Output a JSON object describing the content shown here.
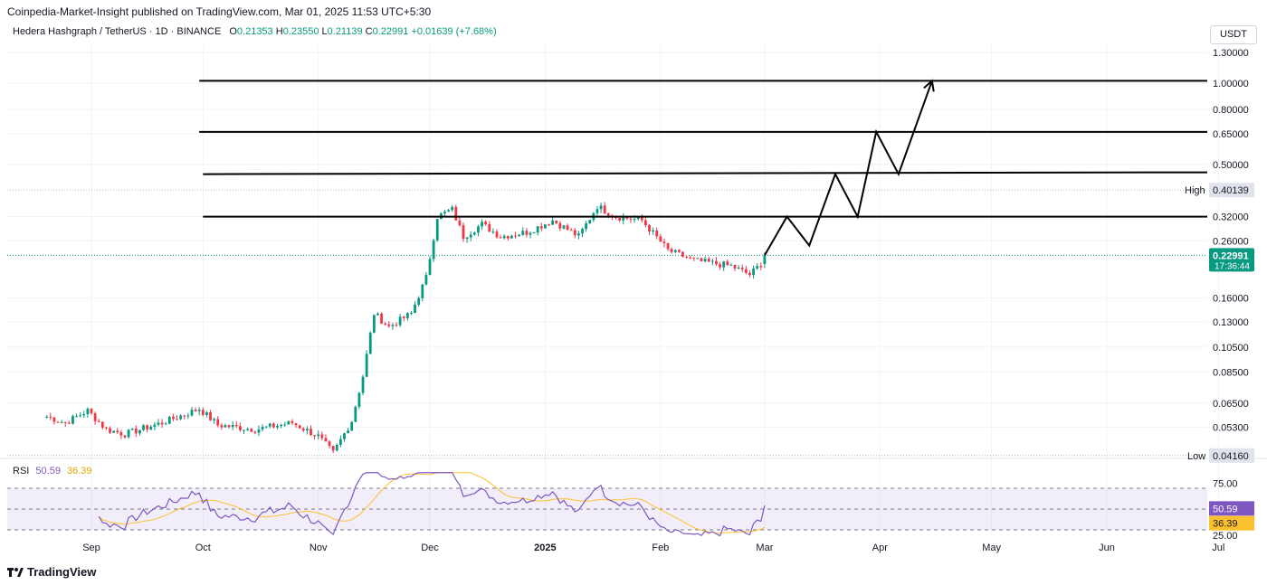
{
  "header": {
    "publisher": "Coinpedia-Market-Insight published on TradingView.com, Mar 01, 2025 11:53 UTC+5:30"
  },
  "legend": {
    "symbol": "Hedera Hashgraph / TetherUS · 1D · BINANCE",
    "open_label": "O",
    "open": "0.21353",
    "high_label": "H",
    "high": "0.23550",
    "low_label": "L",
    "low": "0.21139",
    "close_label": "C",
    "close": "0.22991",
    "change": "+0.01639 (+7.68%)"
  },
  "currency_button": "USDT",
  "rsi": {
    "label": "RSI",
    "value": "50.59",
    "ma_value": "36.39"
  },
  "footer": {
    "brand": "TradingView"
  },
  "colors": {
    "up": "#089981",
    "down": "#f23645",
    "rsi": "#7e57c2",
    "rsi_ma": "#fbc02d",
    "last_price_bg": "#089981"
  },
  "chart_data": {
    "type": "candlestick",
    "symbol": "HBAR/USDT",
    "scale": "log",
    "price_axis_ticks": [
      "1.30000",
      "1.00000",
      "0.80000",
      "0.65000",
      "0.50000",
      "0.32000",
      "0.26000",
      "0.16000",
      "0.13000",
      "0.10500",
      "0.08500",
      "0.06500",
      "0.05300"
    ],
    "price_axis_values": [
      1.3,
      1.0,
      0.8,
      0.65,
      0.5,
      0.32,
      0.26,
      0.16,
      0.13,
      0.105,
      0.085,
      0.065,
      0.053
    ],
    "high_label": "High",
    "high_value": "0.40139",
    "low_label": "Low",
    "low_value": "0.04160",
    "last_price": "0.22991",
    "countdown": "17:36:44",
    "time_axis": [
      "Sep",
      "Oct",
      "Nov",
      "Dec",
      "2025",
      "Feb",
      "Mar",
      "Apr",
      "May",
      "Jun",
      "Jul"
    ],
    "anchors": [
      [
        "2024-08-20",
        0.058
      ],
      [
        "2024-08-25",
        0.055
      ],
      [
        "2024-08-31",
        0.061
      ],
      [
        "2024-09-05",
        0.052
      ],
      [
        "2024-09-10",
        0.05
      ],
      [
        "2024-09-20",
        0.055
      ],
      [
        "2024-09-30",
        0.062
      ],
      [
        "2024-10-05",
        0.054
      ],
      [
        "2024-10-15",
        0.052
      ],
      [
        "2024-10-25",
        0.055
      ],
      [
        "2024-11-01",
        0.049
      ],
      [
        "2024-11-05",
        0.0425
      ],
      [
        "2024-11-10",
        0.056
      ],
      [
        "2024-11-13",
        0.082
      ],
      [
        "2024-11-16",
        0.14
      ],
      [
        "2024-11-20",
        0.125
      ],
      [
        "2024-11-26",
        0.14
      ],
      [
        "2024-11-30",
        0.19
      ],
      [
        "2024-12-03",
        0.32
      ],
      [
        "2024-12-07",
        0.34
      ],
      [
        "2024-12-10",
        0.27
      ],
      [
        "2024-12-15",
        0.3
      ],
      [
        "2024-12-20",
        0.27
      ],
      [
        "2024-12-27",
        0.28
      ],
      [
        "2025-01-03",
        0.31
      ],
      [
        "2025-01-10",
        0.27
      ],
      [
        "2025-01-15",
        0.35
      ],
      [
        "2025-01-20",
        0.32
      ],
      [
        "2025-01-27",
        0.31
      ],
      [
        "2025-02-03",
        0.24
      ],
      [
        "2025-02-10",
        0.22
      ],
      [
        "2025-02-20",
        0.21
      ],
      [
        "2025-02-25",
        0.195
      ],
      [
        "2025-02-28",
        0.2135
      ],
      [
        "2025-03-01",
        0.22991
      ]
    ],
    "horizontal_levels": [
      1.02,
      0.66,
      0.46,
      0.32
    ],
    "projection_path": [
      [
        "2025-03-01",
        0.23
      ],
      [
        "2025-03-07",
        0.32
      ],
      [
        "2025-03-13",
        0.25
      ],
      [
        "2025-03-20",
        0.46
      ],
      [
        "2025-03-26",
        0.32
      ],
      [
        "2025-03-31",
        0.66
      ],
      [
        "2025-04-06",
        0.46
      ],
      [
        "2025-04-15",
        1.02
      ]
    ],
    "rsi_axis_ticks": [
      "75.00",
      "25.00"
    ],
    "rsi_bands": [
      70,
      50,
      30
    ]
  }
}
